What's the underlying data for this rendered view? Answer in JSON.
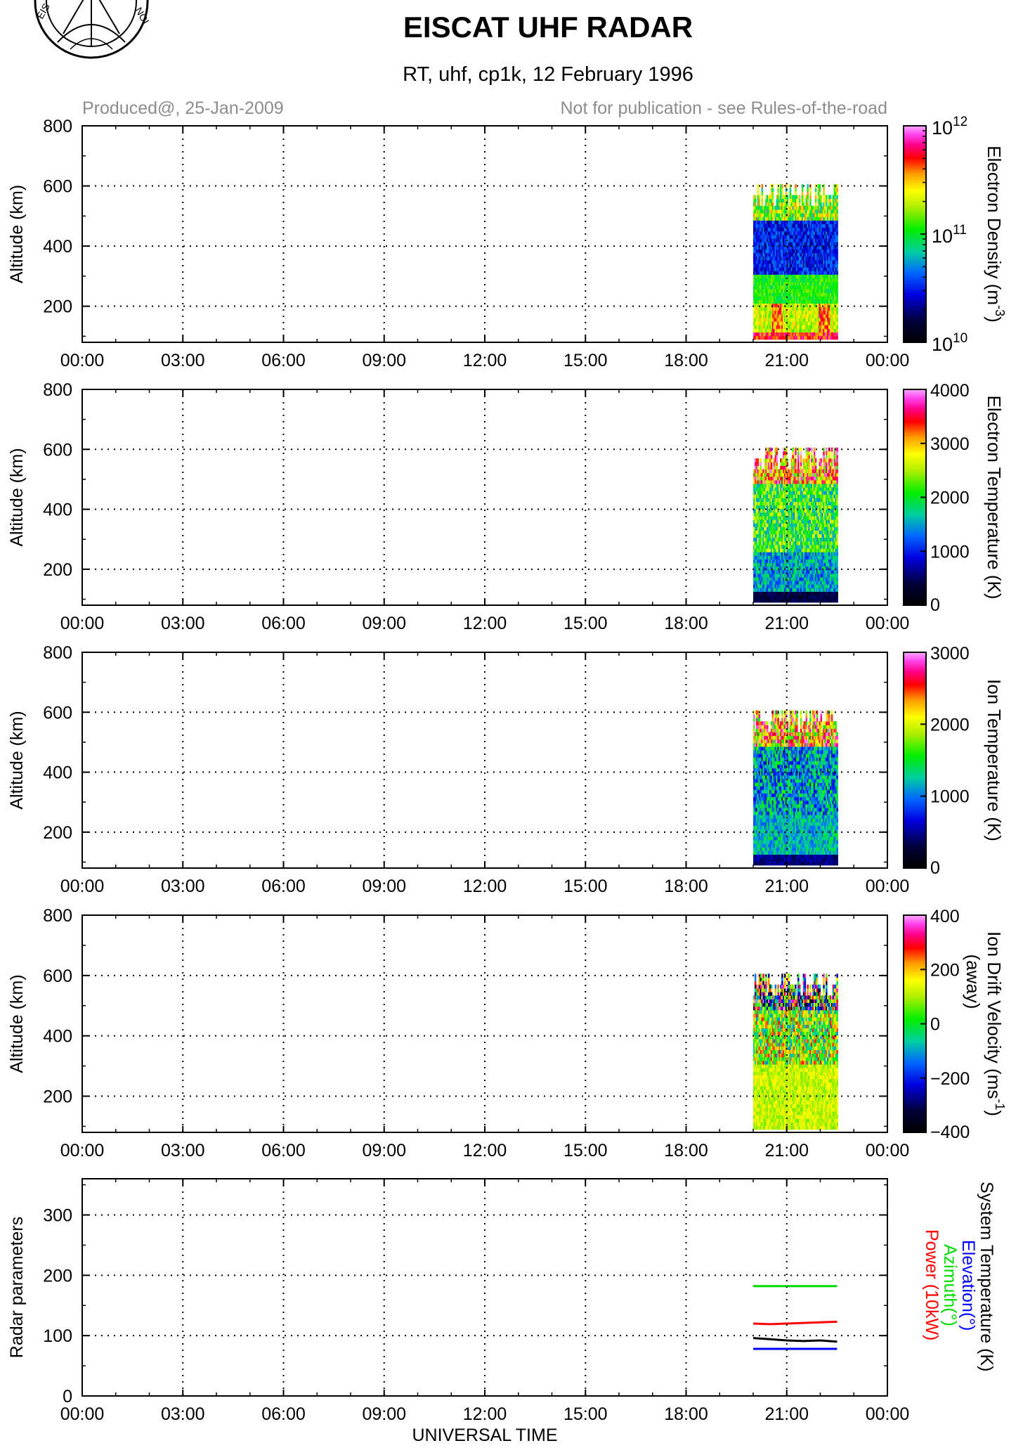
{
  "header": {
    "title": "EISCAT UHF RADAR",
    "subtitle": "RT, uhf, cp1k, 12 February 1996",
    "produced": "Produced@, 25-Jan-2009",
    "notice": "Not for publication - see Rules-of-the-road"
  },
  "colors": {
    "axis": "#000000",
    "grid": "#000000",
    "note_text": "#8c8c8c",
    "elevation": "#0000ff",
    "azimuth": "#00dd00",
    "power": "#ff0000",
    "system_temperature": "#000000"
  },
  "chart_data": [
    {
      "type": "heatmap",
      "panel": "electron-density",
      "ylabel": "Altitude (km)",
      "yticks": [
        "200",
        "400",
        "600",
        "800"
      ],
      "ylim": [
        80,
        800
      ],
      "xlim": [
        0,
        24
      ],
      "xticklabels": [
        "00:00",
        "03:00",
        "06:00",
        "09:00",
        "12:00",
        "15:00",
        "18:00",
        "21:00",
        "00:00"
      ],
      "grid": true,
      "data_time_range": [
        20.0,
        22.5
      ],
      "data_alt_range": [
        90,
        600
      ],
      "colorbar": {
        "label_main": "Electron Density (m",
        "label_sup": "-3",
        "label_close": ")",
        "ticks": [
          {
            "base": "10",
            "exp": "12",
            "frac": 1.0
          },
          {
            "base": "10",
            "exp": "11",
            "frac": 0.5
          },
          {
            "base": "10",
            "exp": "10",
            "frac": 0.0
          }
        ]
      }
    },
    {
      "type": "heatmap",
      "panel": "electron-temperature",
      "ylabel": "Altitude (km)",
      "yticks": [
        "200",
        "400",
        "600",
        "800"
      ],
      "ylim": [
        80,
        800
      ],
      "xlim": [
        0,
        24
      ],
      "xticklabels": [
        "00:00",
        "03:00",
        "06:00",
        "09:00",
        "12:00",
        "15:00",
        "18:00",
        "21:00",
        "00:00"
      ],
      "grid": true,
      "data_time_range": [
        20.0,
        22.5
      ],
      "data_alt_range": [
        90,
        600
      ],
      "colorbar": {
        "label_main": "Electron Temperature (K)",
        "range": [
          0,
          4000
        ],
        "ticks": [
          "4000",
          "3000",
          "2000",
          "1000",
          "0"
        ]
      }
    },
    {
      "type": "heatmap",
      "panel": "ion-temperature",
      "ylabel": "Altitude (km)",
      "yticks": [
        "200",
        "400",
        "600",
        "800"
      ],
      "ylim": [
        80,
        800
      ],
      "xlim": [
        0,
        24
      ],
      "xticklabels": [
        "00:00",
        "03:00",
        "06:00",
        "09:00",
        "12:00",
        "15:00",
        "18:00",
        "21:00",
        "00:00"
      ],
      "grid": true,
      "data_time_range": [
        20.0,
        22.5
      ],
      "data_alt_range": [
        90,
        600
      ],
      "colorbar": {
        "label_main": "Ion Temperature (K)",
        "range": [
          0,
          3000
        ],
        "ticks": [
          "3000",
          "2000",
          "1000",
          "0"
        ]
      }
    },
    {
      "type": "heatmap",
      "panel": "ion-drift-velocity",
      "ylabel": "Altitude (km)",
      "yticks": [
        "200",
        "400",
        "600",
        "800"
      ],
      "ylim": [
        80,
        800
      ],
      "xlim": [
        0,
        24
      ],
      "xticklabels": [
        "00:00",
        "03:00",
        "06:00",
        "09:00",
        "12:00",
        "15:00",
        "18:00",
        "21:00",
        "00:00"
      ],
      "grid": true,
      "data_time_range": [
        20.0,
        22.5
      ],
      "data_alt_range": [
        90,
        600
      ],
      "colorbar": {
        "label_main": "Ion Drift Velocity (ms",
        "label_sup": "-1",
        "label_close": ")",
        "label_second": "(away)",
        "range": [
          -400,
          400
        ],
        "ticks": [
          "400",
          "200",
          "0",
          "−200",
          "−400"
        ]
      }
    },
    {
      "type": "line",
      "panel": "radar-parameters",
      "ylabel": "Radar parameters",
      "xlabel": "UNIVERSAL TIME",
      "yticks": [
        "0",
        "100",
        "200",
        "300"
      ],
      "ylim": [
        0,
        360
      ],
      "xlim": [
        0,
        24
      ],
      "xticklabels": [
        "00:00",
        "03:00",
        "06:00",
        "09:00",
        "12:00",
        "15:00",
        "18:00",
        "21:00",
        "00:00"
      ],
      "grid": true,
      "legend": [
        "System Temperature (K)",
        "Elevation(°)",
        "Azimuth(°)",
        "Power (10kW)"
      ],
      "series": [
        {
          "name": "Azimuth(°)",
          "color": "#00dd00",
          "x": [
            20.0,
            22.5
          ],
          "y": [
            182,
            182
          ]
        },
        {
          "name": "Power (10kW)",
          "color": "#ff0000",
          "x": [
            20.0,
            20.5,
            21.0,
            21.5,
            22.0,
            22.5
          ],
          "y": [
            120,
            119,
            120,
            121,
            122,
            123
          ]
        },
        {
          "name": "System Temperature (K)",
          "color": "#000000",
          "x": [
            20.0,
            20.5,
            21.0,
            21.5,
            22.0,
            22.5
          ],
          "y": [
            96,
            94,
            92,
            91,
            92,
            90
          ]
        },
        {
          "name": "Elevation(°)",
          "color": "#0000ff",
          "x": [
            20.0,
            22.5
          ],
          "y": [
            78,
            78
          ]
        }
      ]
    }
  ]
}
